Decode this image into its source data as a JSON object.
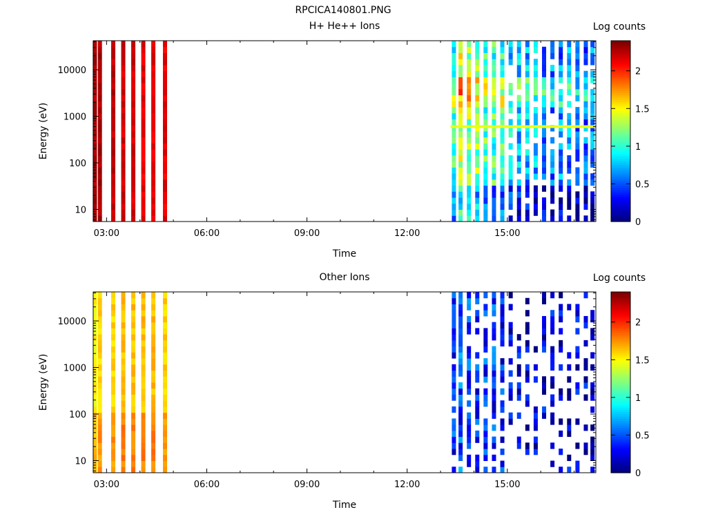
{
  "figure_title": "RPCICA140801.PNG",
  "chart_data": [
    {
      "type": "heatmap",
      "title": "H+ He++ Ions",
      "xlabel": "Time",
      "ylabel": "Energy (eV)",
      "x_unit": "hours (UT)",
      "xlim": [
        2.6,
        17.65
      ],
      "x_ticks": [
        3,
        6,
        9,
        12,
        15
      ],
      "x_tick_labels": [
        "03:00",
        "06:00",
        "09:00",
        "12:00",
        "15:00"
      ],
      "yscale": "log",
      "ylim": [
        5.5,
        42000
      ],
      "y_ticks": [
        10,
        100,
        1000,
        10000
      ],
      "y_tick_labels": [
        "10",
        "100",
        "1000",
        "10000"
      ],
      "colorbar": {
        "label": "Log counts",
        "range": [
          0,
          2.4
        ],
        "ticks": [
          0,
          0.5,
          1,
          1.5,
          2
        ],
        "tick_labels": [
          "0",
          "0.5",
          "1",
          "1.5",
          "2"
        ],
        "colormap": "jet"
      },
      "grid": false,
      "legend": "none",
      "columns": [
        {
          "time": 2.65,
          "level": 2.3
        },
        {
          "time": 2.8,
          "level": 2.3
        },
        {
          "time": 3.2,
          "level": 2.25
        },
        {
          "time": 3.5,
          "level": 2.2
        },
        {
          "time": 3.8,
          "level": 2.2
        },
        {
          "time": 4.1,
          "level": 2.15
        },
        {
          "time": 4.4,
          "level": 2.15
        },
        {
          "time": 4.75,
          "level": 2.15
        },
        {
          "time": 13.4,
          "level": 1.0
        },
        {
          "time": 13.6,
          "level": 1.4
        },
        {
          "time": 13.85,
          "level": 1.25
        },
        {
          "time": 14.1,
          "level": 1.2
        },
        {
          "time": 14.35,
          "level": 1.1
        },
        {
          "time": 14.6,
          "level": 1.05
        },
        {
          "time": 14.85,
          "level": 1.0
        },
        {
          "time": 15.1,
          "level": 0.8
        },
        {
          "time": 15.35,
          "level": 0.75
        },
        {
          "time": 15.6,
          "level": 0.7
        },
        {
          "time": 15.85,
          "level": 0.7
        },
        {
          "time": 16.1,
          "level": 0.65
        },
        {
          "time": 16.35,
          "level": 0.6
        },
        {
          "time": 16.6,
          "level": 0.6
        },
        {
          "time": 16.85,
          "level": 0.6
        },
        {
          "time": 17.1,
          "level": 0.55
        },
        {
          "time": 17.35,
          "level": 0.55
        },
        {
          "time": 17.55,
          "level": 0.55
        }
      ]
    },
    {
      "type": "heatmap",
      "title": "Other Ions",
      "xlabel": "Time",
      "ylabel": "Energy (eV)",
      "x_unit": "hours (UT)",
      "xlim": [
        2.6,
        17.65
      ],
      "x_ticks": [
        3,
        6,
        9,
        12,
        15
      ],
      "x_tick_labels": [
        "03:00",
        "06:00",
        "09:00",
        "12:00",
        "15:00"
      ],
      "yscale": "log",
      "ylim": [
        5.5,
        42000
      ],
      "y_ticks": [
        10,
        100,
        1000,
        10000
      ],
      "y_tick_labels": [
        "10",
        "100",
        "1000",
        "10000"
      ],
      "colorbar": {
        "label": "Log counts",
        "range": [
          0,
          2.4
        ],
        "ticks": [
          0,
          0.5,
          1,
          1.5,
          2
        ],
        "tick_labels": [
          "0",
          "0.5",
          "1",
          "1.5",
          "2"
        ],
        "colormap": "jet"
      },
      "grid": false,
      "legend": "none",
      "columns": [
        {
          "time": 2.65,
          "level": 1.5
        },
        {
          "time": 2.8,
          "level": 1.6
        },
        {
          "time": 3.2,
          "level": 1.6
        },
        {
          "time": 3.5,
          "level": 1.65
        },
        {
          "time": 3.8,
          "level": 1.65
        },
        {
          "time": 4.1,
          "level": 1.65
        },
        {
          "time": 4.4,
          "level": 1.65
        },
        {
          "time": 4.75,
          "level": 1.6
        },
        {
          "time": 13.4,
          "level": 0.35
        },
        {
          "time": 13.6,
          "level": 0.45
        },
        {
          "time": 13.85,
          "level": 0.4
        },
        {
          "time": 14.1,
          "level": 0.4
        },
        {
          "time": 14.35,
          "level": 0.4
        },
        {
          "time": 14.6,
          "level": 0.4
        },
        {
          "time": 14.85,
          "level": 0.35
        },
        {
          "time": 15.1,
          "level": 0.2
        },
        {
          "time": 15.35,
          "level": 0.2
        },
        {
          "time": 15.6,
          "level": 0.2
        },
        {
          "time": 15.85,
          "level": 0.2
        },
        {
          "time": 16.1,
          "level": 0.2
        },
        {
          "time": 16.35,
          "level": 0.2
        },
        {
          "time": 16.6,
          "level": 0.2
        },
        {
          "time": 16.85,
          "level": 0.2
        },
        {
          "time": 17.1,
          "level": 0.2
        },
        {
          "time": 17.35,
          "level": 0.2
        },
        {
          "time": 17.55,
          "level": 0.2
        }
      ]
    }
  ]
}
